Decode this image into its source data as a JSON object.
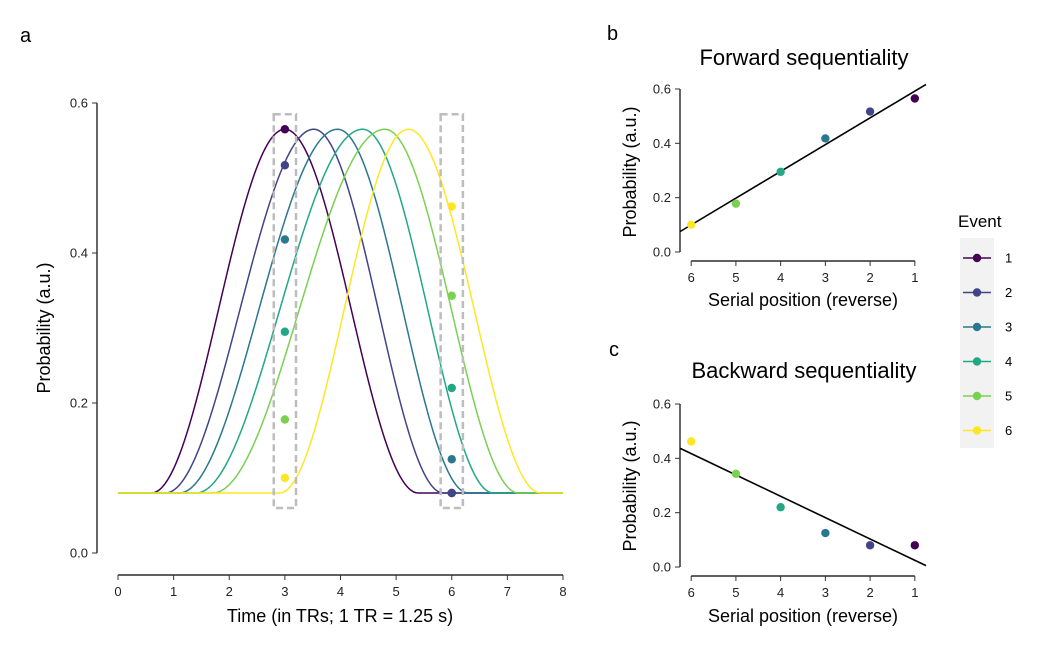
{
  "colors": {
    "events": [
      "#440154",
      "#414487",
      "#2a788e",
      "#22a884",
      "#7ad151",
      "#fde725"
    ],
    "window": "#bdbdbd",
    "fit_line": "#000000"
  },
  "legend": {
    "title": "Event",
    "entries": [
      "1",
      "2",
      "3",
      "4",
      "5",
      "6"
    ],
    "placement": "right"
  },
  "chart_data": [
    {
      "id": "a",
      "panel_letter": "a",
      "type": "line",
      "title": "",
      "xlabel": "Time (in TRs; 1 TR = 1.25 s)",
      "ylabel": "Probability (a.u.)",
      "xlim": [
        0,
        8
      ],
      "ylim": [
        0,
        0.6
      ],
      "xticks": [
        "0",
        "1",
        "2",
        "3",
        "4",
        "5",
        "6",
        "7",
        "8"
      ],
      "yticks": [
        "0.0",
        "0.2",
        "0.4",
        "0.6"
      ],
      "baseline": 0.08,
      "peak": 0.565,
      "series": [
        {
          "name": "1",
          "onset": 0.6,
          "peak_time": 3.0,
          "offset": 5.4
        },
        {
          "name": "2",
          "onset": 0.85,
          "peak_time": 3.52,
          "offset": 5.85
        },
        {
          "name": "3",
          "onset": 1.1,
          "peak_time": 3.95,
          "offset": 6.3
        },
        {
          "name": "4",
          "onset": 1.4,
          "peak_time": 4.4,
          "offset": 6.75
        },
        {
          "name": "5",
          "onset": 1.7,
          "peak_time": 4.8,
          "offset": 7.2
        },
        {
          "name": "6",
          "onset": 2.9,
          "peak_time": 5.22,
          "offset": 7.6
        }
      ],
      "windows": [
        {
          "x": [
            2.8,
            3.2
          ],
          "y": [
            0.06,
            0.585
          ]
        },
        {
          "x": [
            5.8,
            6.2
          ],
          "y": [
            0.06,
            0.585
          ]
        }
      ],
      "points": [
        {
          "x": 3,
          "y": 0.565,
          "event": 1
        },
        {
          "x": 3,
          "y": 0.517,
          "event": 2
        },
        {
          "x": 3,
          "y": 0.418,
          "event": 3
        },
        {
          "x": 3,
          "y": 0.295,
          "event": 4
        },
        {
          "x": 3,
          "y": 0.178,
          "event": 5
        },
        {
          "x": 3,
          "y": 0.1,
          "event": 6
        },
        {
          "x": 6,
          "y": 0.08,
          "event": 1
        },
        {
          "x": 6,
          "y": 0.08,
          "event": 2
        },
        {
          "x": 6,
          "y": 0.125,
          "event": 3
        },
        {
          "x": 6,
          "y": 0.22,
          "event": 4
        },
        {
          "x": 6,
          "y": 0.343,
          "event": 5
        },
        {
          "x": 6,
          "y": 0.462,
          "event": 6
        }
      ]
    },
    {
      "id": "b",
      "panel_letter": "b",
      "type": "scatter",
      "title": "Forward sequentiality",
      "xlabel": "Serial position (reverse)",
      "ylabel": "Probability (a.u.)",
      "xticks": [
        "6",
        "5",
        "4",
        "3",
        "2",
        "1"
      ],
      "xlim": [
        6.25,
        0.75
      ],
      "ylim": [
        0,
        0.6
      ],
      "yticks": [
        "0.0",
        "0.2",
        "0.4",
        "0.6"
      ],
      "points": [
        {
          "x": 6,
          "y": 0.1,
          "event": 6
        },
        {
          "x": 5,
          "y": 0.178,
          "event": 5
        },
        {
          "x": 4,
          "y": 0.295,
          "event": 4
        },
        {
          "x": 3,
          "y": 0.418,
          "event": 3
        },
        {
          "x": 2,
          "y": 0.517,
          "event": 2
        },
        {
          "x": 1,
          "y": 0.565,
          "event": 1
        }
      ],
      "fit": {
        "x": [
          6.25,
          0.75
        ],
        "y": [
          0.075,
          0.617
        ]
      }
    },
    {
      "id": "c",
      "panel_letter": "c",
      "type": "scatter",
      "title": "Backward sequentiality",
      "xlabel": "Serial position (reverse)",
      "ylabel": "Probability (a.u.)",
      "xticks": [
        "6",
        "5",
        "4",
        "3",
        "2",
        "1"
      ],
      "xlim": [
        6.25,
        0.75
      ],
      "ylim": [
        0,
        0.6
      ],
      "yticks": [
        "0.0",
        "0.2",
        "0.4",
        "0.6"
      ],
      "points": [
        {
          "x": 6,
          "y": 0.462,
          "event": 6
        },
        {
          "x": 5,
          "y": 0.343,
          "event": 5
        },
        {
          "x": 4,
          "y": 0.22,
          "event": 4
        },
        {
          "x": 3,
          "y": 0.125,
          "event": 3
        },
        {
          "x": 2,
          "y": 0.08,
          "event": 2
        },
        {
          "x": 1,
          "y": 0.08,
          "event": 1
        }
      ],
      "fit": {
        "x": [
          6.25,
          0.75
        ],
        "y": [
          0.437,
          0.005
        ]
      }
    }
  ]
}
